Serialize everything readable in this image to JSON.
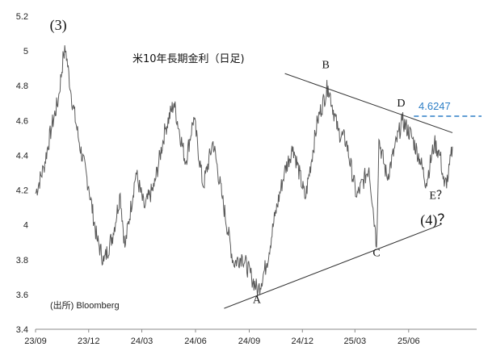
{
  "chart_data": {
    "type": "line",
    "title": "米10年長期金利（日足)",
    "source": "(出所) Bloomberg",
    "ylim": [
      3.4,
      5.2
    ],
    "yticks": [
      "3.4",
      "3.6",
      "3.8",
      "4",
      "4.2",
      "4.4",
      "4.6",
      "4.8",
      "5",
      "5.2"
    ],
    "xlim": [
      "2023-09-01",
      "2025-08-15"
    ],
    "xticks": [
      {
        "label": "23/09",
        "date": "2023-09-01"
      },
      {
        "label": "23/12",
        "date": "2023-12-01"
      },
      {
        "label": "24/03",
        "date": "2024-03-01"
      },
      {
        "label": "24/06",
        "date": "2024-06-01"
      },
      {
        "label": "24/09",
        "date": "2024-09-01"
      },
      {
        "label": "24/12",
        "date": "2024-12-01"
      },
      {
        "label": "25/03",
        "date": "2025-03-01"
      },
      {
        "label": "25/06",
        "date": "2025-06-01"
      }
    ],
    "grid": false,
    "series": [
      {
        "color": "#5a5a5a",
        "points": [
          [
            "2023-09-01",
            4.18
          ],
          [
            "2023-09-15",
            4.33
          ],
          [
            "2023-09-29",
            4.57
          ],
          [
            "2023-10-10",
            4.72
          ],
          [
            "2023-10-19",
            4.98
          ],
          [
            "2023-10-23",
            5.0
          ],
          [
            "2023-11-01",
            4.75
          ],
          [
            "2023-11-15",
            4.47
          ],
          [
            "2023-12-01",
            4.22
          ],
          [
            "2023-12-15",
            3.92
          ],
          [
            "2023-12-27",
            3.79
          ],
          [
            "2024-01-12",
            3.95
          ],
          [
            "2024-01-24",
            4.18
          ],
          [
            "2024-02-01",
            3.87
          ],
          [
            "2024-02-20",
            4.3
          ],
          [
            "2024-03-05",
            4.1
          ],
          [
            "2024-03-22",
            4.22
          ],
          [
            "2024-04-10",
            4.55
          ],
          [
            "2024-04-25",
            4.7
          ],
          [
            "2024-05-15",
            4.36
          ],
          [
            "2024-05-29",
            4.62
          ],
          [
            "2024-06-14",
            4.22
          ],
          [
            "2024-07-01",
            4.48
          ],
          [
            "2024-07-17",
            4.15
          ],
          [
            "2024-08-05",
            3.78
          ],
          [
            "2024-08-20",
            3.82
          ],
          [
            "2024-09-05",
            3.7
          ],
          [
            "2024-09-16",
            3.62
          ],
          [
            "2024-10-01",
            3.78
          ],
          [
            "2024-10-15",
            4.05
          ],
          [
            "2024-10-31",
            4.3
          ],
          [
            "2024-11-15",
            4.45
          ],
          [
            "2024-12-06",
            4.15
          ],
          [
            "2024-12-27",
            4.6
          ],
          [
            "2025-01-14",
            4.8
          ],
          [
            "2025-01-31",
            4.54
          ],
          [
            "2025-02-14",
            4.48
          ],
          [
            "2025-03-04",
            4.16
          ],
          [
            "2025-03-25",
            4.33
          ],
          [
            "2025-04-04",
            4.0
          ],
          [
            "2025-04-07",
            3.87
          ],
          [
            "2025-04-11",
            4.49
          ],
          [
            "2025-04-25",
            4.27
          ],
          [
            "2025-05-21",
            4.6
          ],
          [
            "2025-06-06",
            4.51
          ],
          [
            "2025-06-20",
            4.38
          ],
          [
            "2025-07-01",
            4.24
          ],
          [
            "2025-07-15",
            4.47
          ],
          [
            "2025-07-25",
            4.4
          ],
          [
            "2025-08-01",
            4.22
          ],
          [
            "2025-08-08",
            4.28
          ],
          [
            "2025-08-15",
            4.45
          ]
        ]
      }
    ],
    "trendlines": [
      {
        "from": [
          "2024-11-01",
          4.87
        ],
        "to": [
          "2025-08-15",
          4.53
        ],
        "color": "#333333"
      },
      {
        "from": [
          "2024-07-20",
          3.52
        ],
        "to": [
          "2025-07-25",
          4.0
        ],
        "color": "#333333"
      }
    ],
    "hline": {
      "value": 4.6247,
      "label": "4.6247",
      "from": "2025-06-10",
      "color": "#2e7fc6"
    },
    "annotations": [
      {
        "text": "(3)",
        "date": "2023-10-10",
        "y": 5.12,
        "size": 18
      },
      {
        "text": "A",
        "date": "2024-09-14",
        "y": 3.55,
        "size": 14
      },
      {
        "text": "B",
        "date": "2025-01-10",
        "y": 4.9,
        "size": 14
      },
      {
        "text": "C",
        "date": "2025-04-07",
        "y": 3.82,
        "size": 14
      },
      {
        "text": "D",
        "date": "2025-05-19",
        "y": 4.68,
        "size": 14
      },
      {
        "text": "E？",
        "date": "2025-07-22",
        "y": 4.15,
        "size": 14
      },
      {
        "text": "(4)？",
        "date": "2025-07-18",
        "y": 4.0,
        "size": 18
      }
    ]
  }
}
